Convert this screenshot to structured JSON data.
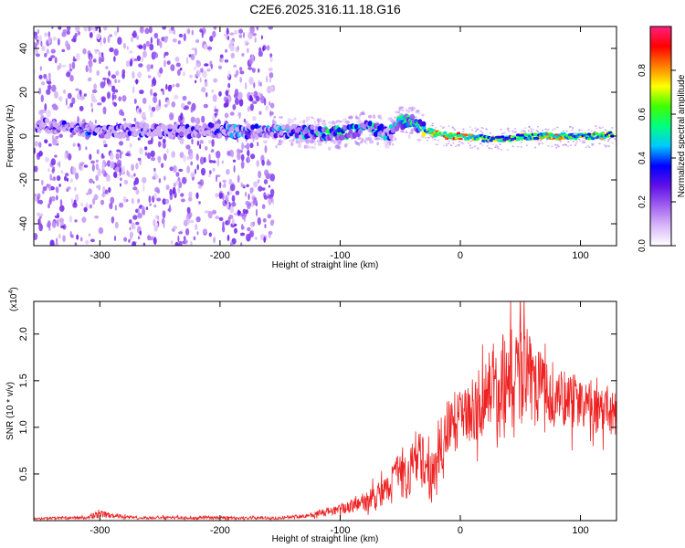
{
  "title": "C2E6.2025.316.11.18.G16",
  "colors": {
    "line": "#ee2222",
    "axis": "#000000"
  },
  "chart_data": [
    {
      "type": "heatmap",
      "xlabel": "Height of straight line (km)",
      "ylabel": "Frequency (Hz)",
      "xlim": [
        -355,
        130
      ],
      "ylim": [
        -50,
        50
      ],
      "xticks": [
        -300,
        -200,
        -100,
        0,
        100
      ],
      "yticks": [
        -40,
        -20,
        0,
        20,
        40
      ],
      "colorbar": {
        "label": "Normalized spectral amplitude",
        "range": [
          0,
          1
        ],
        "ticks": [
          "0.0",
          "0.2",
          "0.4",
          "0.6",
          "0.8"
        ],
        "tick_values": [
          0,
          0.2,
          0.4,
          0.6,
          0.8
        ],
        "colormap": [
          "#ffffff",
          "#d8b8f8",
          "#a060f0",
          "#6010e8",
          "#0000ff",
          "#00c8ff",
          "#00ff80",
          "#40ff00",
          "#ffff00",
          "#ff8000",
          "#ff0000",
          "#ff2080"
        ]
      },
      "ridge": {
        "x": [
          -350,
          -330,
          -310,
          -290,
          -270,
          -250,
          -230,
          -210,
          -190,
          -170,
          -150,
          -130,
          -110,
          -90,
          -80,
          -70,
          -60,
          -50,
          -40,
          -30,
          -20,
          -10,
          0,
          20,
          40,
          60,
          80,
          100,
          120,
          128
        ],
        "freq": [
          5,
          4,
          3,
          2,
          3,
          2,
          2,
          3,
          2,
          2,
          2,
          2,
          1,
          2,
          4,
          3,
          1,
          6,
          7,
          3,
          1,
          0,
          0,
          -1,
          -1,
          0,
          0,
          0,
          0,
          1
        ],
        "amplitude": [
          0.3,
          0.35,
          0.4,
          0.3,
          0.35,
          0.3,
          0.35,
          0.3,
          0.45,
          0.35,
          0.45,
          0.5,
          0.55,
          0.55,
          0.5,
          0.55,
          0.45,
          0.6,
          0.55,
          0.7,
          0.9,
          0.85,
          0.9,
          0.75,
          0.7,
          0.75,
          0.85,
          0.75,
          0.8,
          0.7
        ]
      }
    },
    {
      "type": "line",
      "xlabel": "Height of straight line (km)",
      "ylabel": "SNR (10 * v/v)",
      "y_multiplier": "(x10",
      "y_multiplier_exp": "4",
      "y_multiplier_close": ")",
      "xlim": [
        -355,
        130
      ],
      "ylim": [
        0,
        2.35
      ],
      "xticks": [
        -300,
        -200,
        -100,
        0,
        100
      ],
      "yticks": [
        0.5,
        1.0,
        1.5,
        2.0
      ],
      "ytick_labels": [
        "0.5",
        "1.0",
        "1.5",
        "2.0"
      ],
      "series": [
        {
          "x": [
            -355,
            -330,
            -310,
            -300,
            -290,
            -270,
            -250,
            -230,
            -210,
            -190,
            -170,
            -150,
            -130,
            -110,
            -100,
            -90,
            -80,
            -70,
            -60,
            -55,
            -50,
            -45,
            -40,
            -35,
            -30,
            -25,
            -20,
            -15,
            -10,
            -5,
            0,
            5,
            10,
            20,
            30,
            40,
            50,
            55,
            60,
            70,
            80,
            90,
            100,
            110,
            120,
            130
          ],
          "values": [
            0.02,
            0.03,
            0.03,
            0.07,
            0.05,
            0.03,
            0.03,
            0.03,
            0.03,
            0.03,
            0.03,
            0.03,
            0.05,
            0.09,
            0.12,
            0.16,
            0.2,
            0.26,
            0.32,
            0.55,
            0.5,
            0.4,
            0.6,
            0.75,
            0.6,
            0.45,
            0.5,
            0.85,
            1.0,
            1.05,
            1.1,
            1.15,
            1.2,
            1.35,
            1.45,
            1.55,
            1.55,
            1.6,
            1.5,
            1.35,
            1.35,
            1.3,
            1.25,
            1.2,
            1.15,
            1.15
          ],
          "spread": [
            0.01,
            0.02,
            0.02,
            0.06,
            0.03,
            0.02,
            0.02,
            0.02,
            0.02,
            0.02,
            0.02,
            0.02,
            0.03,
            0.06,
            0.08,
            0.1,
            0.14,
            0.18,
            0.22,
            0.3,
            0.3,
            0.28,
            0.35,
            0.4,
            0.4,
            0.35,
            0.4,
            0.4,
            0.45,
            0.45,
            0.45,
            0.45,
            0.45,
            0.55,
            0.6,
            0.7,
            0.72,
            0.72,
            0.65,
            0.5,
            0.45,
            0.42,
            0.4,
            0.35,
            0.32,
            0.3
          ]
        }
      ]
    }
  ]
}
